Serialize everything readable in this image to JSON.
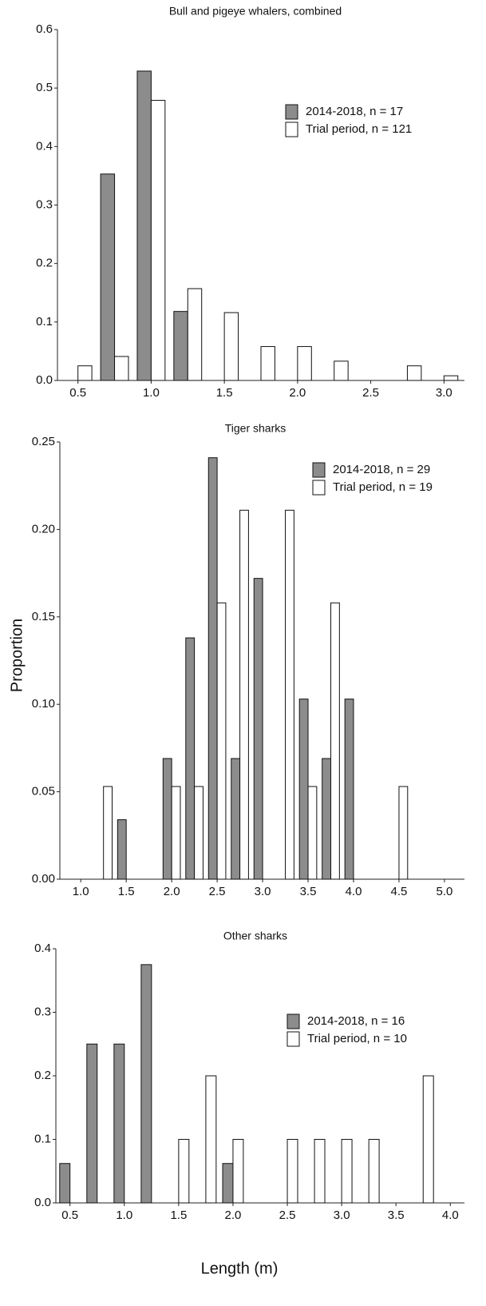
{
  "chart_data": [
    {
      "type": "bar",
      "title": "Bull and pigeye whalers, combined",
      "x": [
        0.5,
        0.75,
        1,
        1.25,
        1.5,
        1.75,
        2,
        2.25,
        2.75,
        3
      ],
      "series": [
        {
          "name": "2014-2018, n = 17",
          "color": "#8c8c8c",
          "values": [
            null,
            0.353,
            0.529,
            0.118,
            null,
            null,
            null,
            null,
            null,
            null
          ]
        },
        {
          "name": "Trial period, n = 121",
          "color": "#ffffff",
          "values": [
            0.025,
            0.041,
            0.479,
            0.157,
            0.116,
            0.058,
            0.058,
            0.033,
            0.025,
            0.008
          ]
        }
      ],
      "xlim": [
        0.36,
        3.14
      ],
      "xticks": [
        0.5,
        {
          "value": 1,
          "label": "1.0"
        },
        1.5,
        {
          "value": 2,
          "label": "2.0"
        },
        2.5,
        {
          "value": 3,
          "label": "3.0"
        }
      ],
      "ylim": [
        0,
        0.6
      ],
      "yticks": [
        {
          "value": 0,
          "label": "0.0"
        },
        0.1,
        0.2,
        0.3,
        0.4,
        0.5,
        0.6
      ]
    },
    {
      "type": "bar",
      "title": "Tiger sharks",
      "ylabel": "Proportion",
      "x": [
        1.25,
        1.5,
        2,
        2.25,
        2.5,
        2.75,
        3,
        3.25,
        3.5,
        3.75,
        4,
        4.5
      ],
      "series": [
        {
          "name": "2014-2018, n = 29",
          "color": "#8c8c8c",
          "values": [
            null,
            0.034,
            0.069,
            0.138,
            0.241,
            0.069,
            0.172,
            null,
            0.103,
            0.069,
            0.103,
            null
          ]
        },
        {
          "name": "Trial period, n = 19",
          "color": "#ffffff",
          "values": [
            0.053,
            null,
            0.053,
            0.053,
            0.158,
            0.211,
            null,
            0.211,
            0.053,
            0.158,
            null,
            0.053
          ]
        }
      ],
      "xlim": [
        0.77,
        5.22
      ],
      "xticks": [
        {
          "value": 1,
          "label": "1.0"
        },
        1.5,
        {
          "value": 2,
          "label": "2.0"
        },
        2.5,
        {
          "value": 3,
          "label": "3.0"
        },
        3.5,
        {
          "value": 4,
          "label": "4.0"
        },
        4.5,
        {
          "value": 5,
          "label": "5.0"
        }
      ],
      "ylim": [
        0,
        0.25
      ],
      "yticks": [
        {
          "value": 0,
          "label": "0.00"
        },
        0.05,
        {
          "value": 0.1,
          "label": "0.10"
        },
        0.15,
        {
          "value": 0.2,
          "label": "0.20"
        },
        0.25
      ]
    },
    {
      "type": "bar",
      "title": "Other sharks",
      "xlabel": "Length (m)",
      "x": [
        0.5,
        0.75,
        1,
        1.25,
        1.5,
        1.75,
        2,
        2.5,
        2.75,
        3,
        3.25,
        3.75
      ],
      "series": [
        {
          "name": "2014-2018, n = 16",
          "color": "#8c8c8c",
          "values": [
            0.062,
            0.25,
            0.25,
            0.375,
            null,
            null,
            0.062,
            null,
            null,
            null,
            null,
            null
          ]
        },
        {
          "name": "Trial period, n = 10",
          "color": "#ffffff",
          "values": [
            null,
            null,
            null,
            null,
            0.1,
            0.2,
            0.1,
            0.1,
            0.1,
            0.1,
            0.1,
            0.2
          ]
        }
      ],
      "xlim": [
        0.37,
        4.13
      ],
      "xticks": [
        0.5,
        {
          "value": 1,
          "label": "1.0"
        },
        1.5,
        {
          "value": 2,
          "label": "2.0"
        },
        2.5,
        {
          "value": 3,
          "label": "3.0"
        },
        3.5,
        {
          "value": 4,
          "label": "4.0"
        }
      ],
      "ylim": [
        0,
        0.4
      ],
      "yticks": [
        {
          "value": 0,
          "label": "0.0"
        },
        0.1,
        0.2,
        0.3,
        0.4
      ]
    }
  ]
}
